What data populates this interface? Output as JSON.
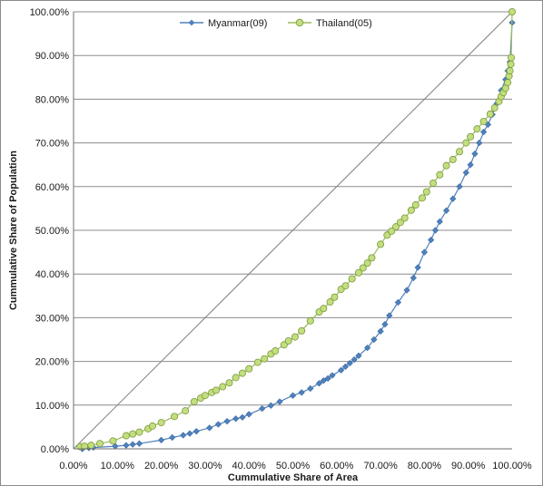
{
  "chart_data": {
    "type": "line",
    "title": "",
    "xlabel": "Cummulative Share of Area",
    "ylabel": "Cummulative Share of Population",
    "xlim": [
      0,
      100
    ],
    "ylim": [
      0,
      100
    ],
    "x_tick_labels": [
      "0.00%",
      "10.00%",
      "20.00%",
      "30.00%",
      "40.00%",
      "50.00%",
      "60.00%",
      "70.00%",
      "80.00%",
      "90.00%",
      "100.00%"
    ],
    "y_tick_labels": [
      "0.00%",
      "10.00%",
      "20.00%",
      "30.00%",
      "40.00%",
      "50.00%",
      "60.00%",
      "70.00%",
      "80.00%",
      "90.00%",
      "100.00%"
    ],
    "grid": "horizontal",
    "legend_position": "top",
    "reference_line": {
      "x": [
        0,
        100
      ],
      "y": [
        0,
        100
      ],
      "color": "#808080"
    },
    "series": [
      {
        "name": "Myanmar(09)",
        "color": "#4F81BD",
        "marker": "diamond",
        "points": [
          [
            2,
            0
          ],
          [
            3.5,
            0.2
          ],
          [
            4.5,
            0.3
          ],
          [
            9.5,
            0.6
          ],
          [
            12,
            0.8
          ],
          [
            13.5,
            1.0
          ],
          [
            15,
            1.2
          ],
          [
            20,
            2
          ],
          [
            22.5,
            2.6
          ],
          [
            25,
            3.1
          ],
          [
            26.5,
            3.5
          ],
          [
            28,
            4
          ],
          [
            31,
            4.8
          ],
          [
            33,
            5.6
          ],
          [
            35,
            6.3
          ],
          [
            37,
            6.9
          ],
          [
            38.5,
            7.2
          ],
          [
            40,
            7.9
          ],
          [
            43,
            9.2
          ],
          [
            45,
            9.9
          ],
          [
            47,
            10.8
          ],
          [
            50,
            12.2
          ],
          [
            52,
            12.9
          ],
          [
            54,
            13.8
          ],
          [
            56,
            15
          ],
          [
            57,
            15.6
          ],
          [
            58,
            16.1
          ],
          [
            59,
            16.8
          ],
          [
            61,
            18
          ],
          [
            62,
            18.8
          ],
          [
            63,
            19.6
          ],
          [
            64,
            20.4
          ],
          [
            65,
            21.3
          ],
          [
            67,
            23.1
          ],
          [
            68.5,
            25
          ],
          [
            70,
            26.9
          ],
          [
            71,
            28.5
          ],
          [
            72,
            30.5
          ],
          [
            74,
            33.5
          ],
          [
            76,
            36.3
          ],
          [
            77.5,
            39.1
          ],
          [
            78.5,
            41.5
          ],
          [
            80,
            45
          ],
          [
            81.5,
            47.8
          ],
          [
            82.5,
            50
          ],
          [
            83.5,
            52
          ],
          [
            85,
            54.5
          ],
          [
            86.5,
            57.2
          ],
          [
            88,
            60
          ],
          [
            89.5,
            63.2
          ],
          [
            90.5,
            65
          ],
          [
            91.5,
            67.5
          ],
          [
            92.5,
            70
          ],
          [
            93.5,
            72.5
          ],
          [
            94.5,
            74.2
          ],
          [
            95.5,
            76.5
          ],
          [
            96.5,
            79
          ],
          [
            97.5,
            82
          ],
          [
            98.5,
            84.5
          ],
          [
            99,
            86.5
          ],
          [
            99.5,
            88.5
          ],
          [
            100,
            97.5
          ]
        ]
      },
      {
        "name": "Thailand(05)",
        "color": "#9BBB59",
        "marker": "circle",
        "points": [
          [
            1.5,
            0.5
          ],
          [
            2.5,
            0.6
          ],
          [
            4,
            0.8
          ],
          [
            6,
            1.2
          ],
          [
            9,
            1.8
          ],
          [
            12,
            3
          ],
          [
            13.5,
            3.4
          ],
          [
            15,
            3.8
          ],
          [
            17,
            4.6
          ],
          [
            18,
            5.2
          ],
          [
            20,
            6
          ],
          [
            23,
            7.4
          ],
          [
            25.5,
            8.7
          ],
          [
            27.5,
            10.8
          ],
          [
            29,
            11.6
          ],
          [
            30,
            12.2
          ],
          [
            31.5,
            12.9
          ],
          [
            32.5,
            13.4
          ],
          [
            34,
            14.2
          ],
          [
            35.5,
            15.1
          ],
          [
            37,
            16.3
          ],
          [
            38.5,
            17.3
          ],
          [
            40,
            18.3
          ],
          [
            42,
            19.8
          ],
          [
            43.5,
            20.6
          ],
          [
            45,
            21.7
          ],
          [
            46,
            22.4
          ],
          [
            48,
            23.8
          ],
          [
            49,
            24.7
          ],
          [
            50.5,
            25.6
          ],
          [
            52,
            27
          ],
          [
            54,
            29.3
          ],
          [
            56,
            31.3
          ],
          [
            57,
            32.1
          ],
          [
            58.5,
            33.6
          ],
          [
            59.5,
            34.7
          ],
          [
            61,
            36.5
          ],
          [
            62,
            37.3
          ],
          [
            63.5,
            38.9
          ],
          [
            65,
            40.3
          ],
          [
            66,
            41.4
          ],
          [
            67,
            42.5
          ],
          [
            68,
            43.7
          ],
          [
            70,
            46.8
          ],
          [
            71.5,
            48.9
          ],
          [
            72.5,
            49.8
          ],
          [
            73.5,
            50.8
          ],
          [
            74.5,
            51.8
          ],
          [
            75.5,
            52.8
          ],
          [
            77,
            54.6
          ],
          [
            78,
            55.8
          ],
          [
            79.5,
            57.4
          ],
          [
            80.5,
            58.8
          ],
          [
            82,
            60.8
          ],
          [
            83.5,
            62.7
          ],
          [
            85,
            64.8
          ],
          [
            86.5,
            66.2
          ],
          [
            88,
            68
          ],
          [
            89.5,
            70
          ],
          [
            90.5,
            71.4
          ],
          [
            92,
            73.2
          ],
          [
            93.5,
            74.9
          ],
          [
            95,
            76.6
          ],
          [
            96,
            78
          ],
          [
            97,
            79.5
          ],
          [
            97.5,
            80.6
          ],
          [
            98,
            81.5
          ],
          [
            98.5,
            82.5
          ],
          [
            99,
            83.8
          ],
          [
            99.3,
            85.3
          ],
          [
            99.5,
            86.5
          ],
          [
            99.7,
            88
          ],
          [
            99.8,
            89.5
          ],
          [
            100,
            100
          ]
        ]
      }
    ]
  }
}
